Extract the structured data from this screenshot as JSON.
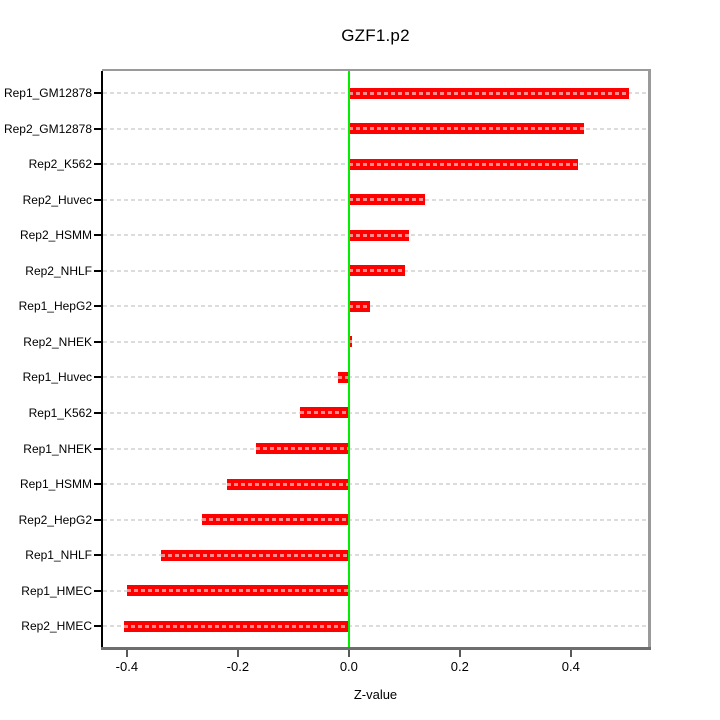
{
  "chart_data": {
    "type": "bar",
    "orientation": "horizontal",
    "title": "GZF1.p2",
    "xlabel": "Z-value",
    "categories": [
      "Rep1_GM12878",
      "Rep2_GM12878",
      "Rep2_K562",
      "Rep2_Huvec",
      "Rep2_HSMM",
      "Rep2_NHLF",
      "Rep1_HepG2",
      "Rep2_NHEK",
      "Rep1_Huvec",
      "Rep1_K562",
      "Rep1_NHEK",
      "Rep1_HSMM",
      "Rep2_HepG2",
      "Rep1_NHLF",
      "Rep1_HMEC",
      "Rep2_HMEC"
    ],
    "values": [
      0.504,
      0.424,
      0.413,
      0.138,
      0.109,
      0.102,
      0.038,
      0.005,
      -0.019,
      -0.088,
      -0.168,
      -0.219,
      -0.264,
      -0.339,
      -0.399,
      -0.406
    ],
    "xlim": [
      -0.443,
      0.539
    ],
    "xticks": {
      "values": [
        -0.4,
        -0.2,
        0.0,
        0.2,
        0.4
      ],
      "labels": [
        "-0.4",
        "-0.2",
        "0.0",
        "0.2",
        "0.4"
      ]
    },
    "grid": "dashed-horizontal-per-row",
    "legend": "none",
    "colors": {
      "bar": "#ff0000",
      "zero_line": "#00ee00",
      "gridline": "#dcdcdc",
      "frame": "#9a9a9a",
      "y_axis": "#000000",
      "x_axis": "#6e6e6e"
    }
  }
}
